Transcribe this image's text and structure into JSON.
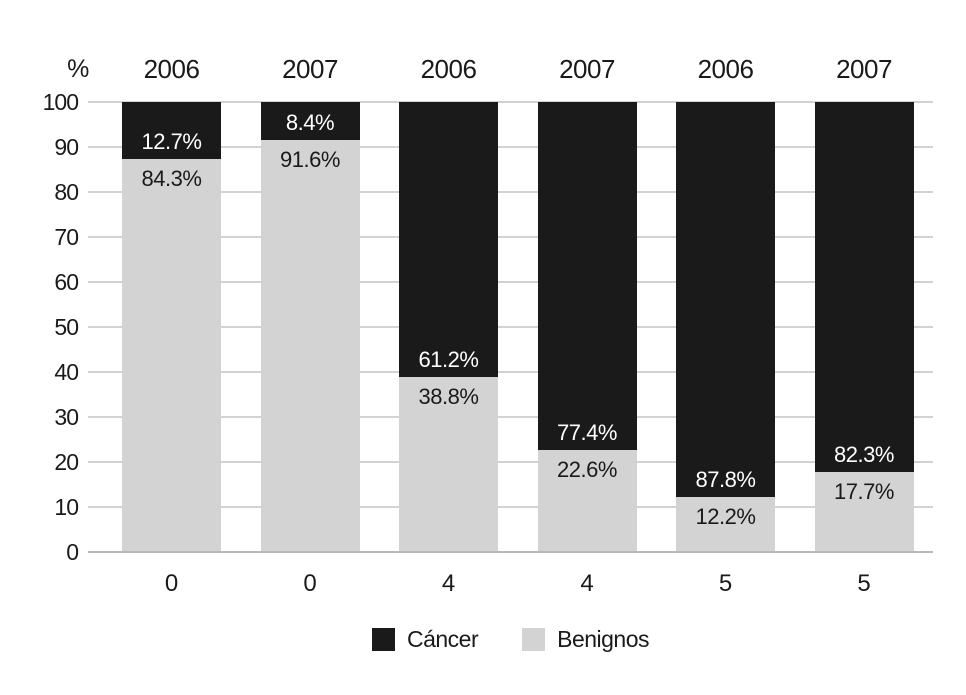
{
  "chart_data": {
    "type": "bar",
    "stacked": true,
    "orientation": "vertical",
    "title": "",
    "y_axis_label": "%",
    "ylim": [
      0,
      100
    ],
    "yticks": [
      0,
      10,
      20,
      30,
      40,
      50,
      60,
      70,
      80,
      90,
      100
    ],
    "grid": true,
    "year_labels": [
      "2006",
      "2007",
      "2006",
      "2007",
      "2006",
      "2007"
    ],
    "categories": [
      "0",
      "0",
      "4",
      "4",
      "5",
      "5"
    ],
    "series": [
      {
        "name": "Cáncer",
        "color": "#1a1a1a",
        "values": [
          12.7,
          8.4,
          61.2,
          77.4,
          87.8,
          82.3
        ],
        "labels": [
          "12.7%",
          "8.4%",
          "61.2%",
          "77.4%",
          "87.8%",
          "82.3%"
        ]
      },
      {
        "name": "Benignos",
        "color": "#d3d3d3",
        "values": [
          84.3,
          91.6,
          38.8,
          22.6,
          12.2,
          17.7
        ],
        "labels": [
          "84.3%",
          "91.6%",
          "38.8%",
          "22.6%",
          "12.2%",
          "17.7%"
        ]
      }
    ],
    "legend": [
      {
        "label": "Cáncer",
        "color": "#1a1a1a"
      },
      {
        "label": "Benignos",
        "color": "#d3d3d3"
      }
    ],
    "legend_position": "bottom"
  },
  "colors": {
    "cancer": "#1a1a1a",
    "benign": "#d3d3d3",
    "gridline": "#d2d2d2",
    "baseline": "#b9b9b9",
    "text": "#1a1a1a",
    "label_on_dark": "#ffffff",
    "background": "#ffffff"
  }
}
